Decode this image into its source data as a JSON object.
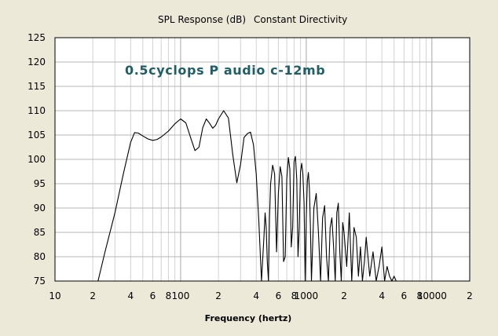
{
  "chart_data": {
    "type": "line",
    "title": "SPL Response (dB)",
    "subtitle": "Constant Directivity",
    "annotation": "0.5cyclops P audio c-12mb",
    "xlabel": "Frequency (hertz)",
    "ylabel": "",
    "x_scale": "log",
    "xlim": [
      10,
      20000
    ],
    "ylim": [
      75,
      125
    ],
    "grid": true,
    "y_ticks": [
      "125",
      "120",
      "115",
      "110",
      "105",
      "100",
      "95",
      "90",
      "85",
      "80",
      "75"
    ],
    "x_ticks": [
      {
        "v": 10,
        "label": "10"
      },
      {
        "v": 20,
        "label": "2"
      },
      {
        "v": 40,
        "label": "4"
      },
      {
        "v": 60,
        "label": "6"
      },
      {
        "v": 80,
        "label": "8"
      },
      {
        "v": 100,
        "label": "100"
      },
      {
        "v": 200,
        "label": "2"
      },
      {
        "v": 400,
        "label": "4"
      },
      {
        "v": 600,
        "label": "6"
      },
      {
        "v": 800,
        "label": "8"
      },
      {
        "v": 1000,
        "label": "1000"
      },
      {
        "v": 2000,
        "label": "2"
      },
      {
        "v": 4000,
        "label": "4"
      },
      {
        "v": 6000,
        "label": "6"
      },
      {
        "v": 8000,
        "label": "8"
      },
      {
        "v": 10000,
        "label": "10000"
      },
      {
        "v": 20000,
        "label": "2"
      }
    ],
    "series": [
      {
        "line_color": "#000000",
        "x": [
          22,
          25,
          30,
          35,
          40,
          43,
          46,
          50,
          55,
          60,
          65,
          70,
          80,
          90,
          100,
          110,
          120,
          130,
          140,
          150,
          160,
          170,
          180,
          190,
          200,
          220,
          240,
          260,
          280,
          300,
          320,
          340,
          360,
          380,
          400,
          420,
          440,
          460,
          470,
          480,
          490,
          500,
          510,
          520,
          540,
          560,
          580,
          600,
          620,
          640,
          660,
          680,
          700,
          720,
          740,
          760,
          780,
          800,
          820,
          840,
          860,
          880,
          900,
          920,
          940,
          960,
          980,
          1000,
          1020,
          1040,
          1060,
          1080,
          1100,
          1150,
          1200,
          1250,
          1300,
          1350,
          1400,
          1450,
          1500,
          1550,
          1600,
          1650,
          1700,
          1750,
          1800,
          1850,
          1900,
          1950,
          2000,
          2100,
          2200,
          2300,
          2400,
          2500,
          2600,
          2700,
          2800,
          2900,
          3000,
          3200,
          3400,
          3600,
          3800,
          4000,
          4200,
          4400,
          4600,
          4800,
          5000,
          5200
        ],
        "y": [
          75,
          81,
          89,
          97,
          103.5,
          105.5,
          105.4,
          104.8,
          104.2,
          103.9,
          104.1,
          104.6,
          105.8,
          107.3,
          108.3,
          107.5,
          104.5,
          101.8,
          102.5,
          106.5,
          108.3,
          107.4,
          106.4,
          107,
          108.3,
          110,
          108.5,
          101,
          95.2,
          99,
          104.5,
          105.3,
          105.6,
          103,
          97,
          87,
          75,
          84,
          89,
          86,
          79,
          75,
          88,
          95,
          98.8,
          97,
          81,
          93,
          98.5,
          96.5,
          79,
          80,
          96,
          100.4,
          98,
          82,
          86,
          99.5,
          100.6,
          96,
          80,
          86,
          97.5,
          99.2,
          97,
          91,
          75,
          88,
          95.5,
          97.3,
          94,
          86,
          75,
          90,
          93,
          85,
          75,
          88,
          90.5,
          80,
          75,
          86,
          88,
          82,
          75,
          89,
          91,
          81,
          75,
          87,
          85,
          78,
          89,
          75,
          86,
          84,
          76,
          82,
          75,
          79,
          84,
          76,
          81,
          75,
          78,
          82,
          75,
          78,
          76,
          75,
          76,
          75
        ]
      }
    ]
  }
}
